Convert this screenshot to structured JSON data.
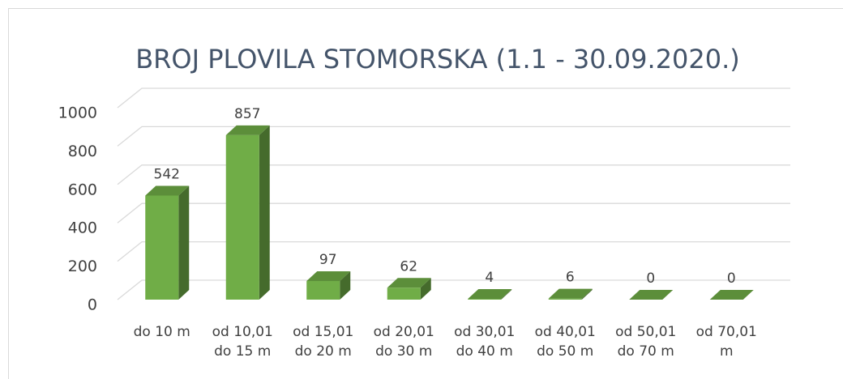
{
  "chart_data": {
    "type": "bar3d",
    "title": "BROJ PLOVILA STOMORSKA (1.1 - 30.09.2020.)",
    "categories": [
      "do 10 m",
      "od 10,01 do 15 m",
      "od 15,01 do 20 m",
      "od 20,01 do 30 m",
      "od 30,01 do 40 m",
      "od 40,01 do 50 m",
      "od 50,01 do 70 m",
      "od 70,01 m"
    ],
    "values": [
      542,
      857,
      97,
      62,
      4,
      6,
      0,
      0
    ],
    "color": "#70ad47",
    "ylim": [
      0,
      1000
    ],
    "yticks": [
      0,
      200,
      400,
      600,
      800,
      1000
    ],
    "grid": true
  }
}
